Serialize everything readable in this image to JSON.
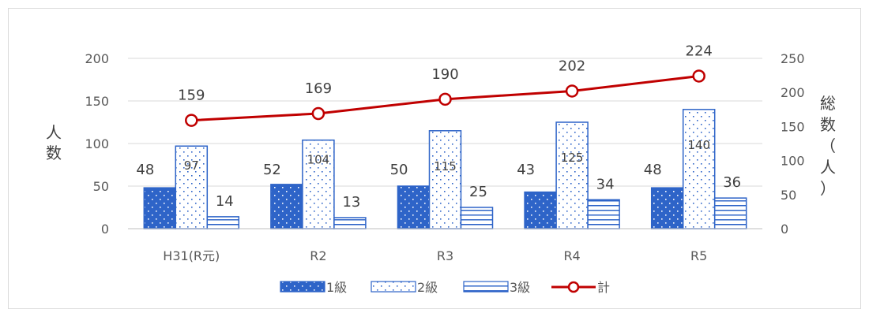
{
  "chart_data": {
    "type": "bar",
    "categories": [
      "H31(R元)",
      "R2",
      "R3",
      "R4",
      "R5"
    ],
    "series": [
      {
        "name": "1級",
        "kind": "bar",
        "axis": "left",
        "values": [
          48,
          52,
          50,
          43,
          48
        ],
        "color": "#2e64c8",
        "pattern": "dots-on-blue"
      },
      {
        "name": "2級",
        "kind": "bar",
        "axis": "left",
        "values": [
          97,
          104,
          115,
          125,
          140
        ],
        "color": "#2e64c8",
        "pattern": "blue-dots-on-white"
      },
      {
        "name": "3級",
        "kind": "bar",
        "axis": "left",
        "values": [
          14,
          13,
          25,
          34,
          36
        ],
        "color": "#2e64c8",
        "pattern": "horizontal-lines"
      },
      {
        "name": "計",
        "kind": "line",
        "axis": "right",
        "values": [
          159,
          169,
          190,
          202,
          224
        ],
        "color": "#c00000"
      }
    ],
    "y_left": {
      "label": "人数",
      "range": [
        0,
        200
      ],
      "ticks": [
        "0",
        "50",
        "100",
        "150",
        "200"
      ]
    },
    "y_right": {
      "label": "総数（人）",
      "range": [
        0,
        250
      ],
      "ticks": [
        "0",
        "50",
        "100",
        "150",
        "200",
        "250"
      ]
    },
    "grid": "horizontal",
    "legend_position": "bottom"
  }
}
